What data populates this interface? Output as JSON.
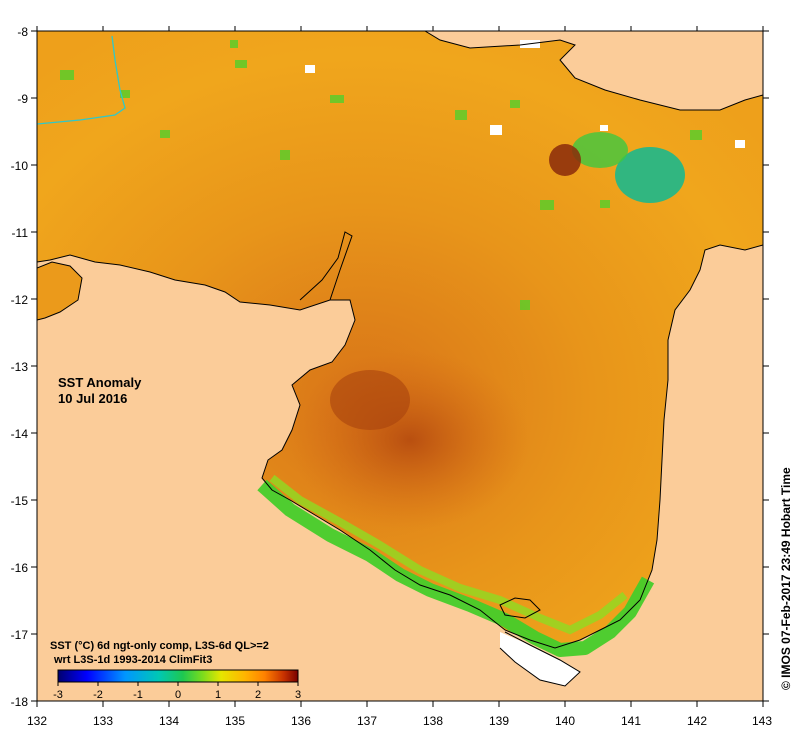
{
  "map": {
    "title_line1": "SST Anomaly",
    "title_line2": "10 Jul 2016",
    "legend_line1": "SST (°C) 6d ngt-only comp, L3S-6d QL>=2",
    "legend_line2": "wrt L3S-1d 1993-2014 ClimFit3",
    "credit": "© IMOS 07-Feb-2017 23:49 Hobart Time",
    "lon_range": [
      132,
      143
    ],
    "lat_range": [
      -18,
      -8
    ],
    "lon_ticks": [
      "132",
      "133",
      "134",
      "135",
      "136",
      "137",
      "138",
      "139",
      "140",
      "141",
      "142",
      "143"
    ],
    "lat_ticks": [
      "-8",
      "-9",
      "-10",
      "-11",
      "-12",
      "-13",
      "-14",
      "-15",
      "-16",
      "-17",
      "-18"
    ],
    "land_color": "#fbcc99",
    "no_data_color": "#ffffff"
  },
  "colorbar": {
    "min": -3,
    "max": 3,
    "tick_labels": [
      "-3",
      "-2",
      "-1",
      "0",
      "1",
      "2",
      "3"
    ],
    "colors": [
      "#00006e",
      "#0000ff",
      "#0096ff",
      "#00c8b4",
      "#1ec850",
      "#78dc1e",
      "#e6e600",
      "#ffb400",
      "#ff8200",
      "#c83200",
      "#780000"
    ]
  }
}
